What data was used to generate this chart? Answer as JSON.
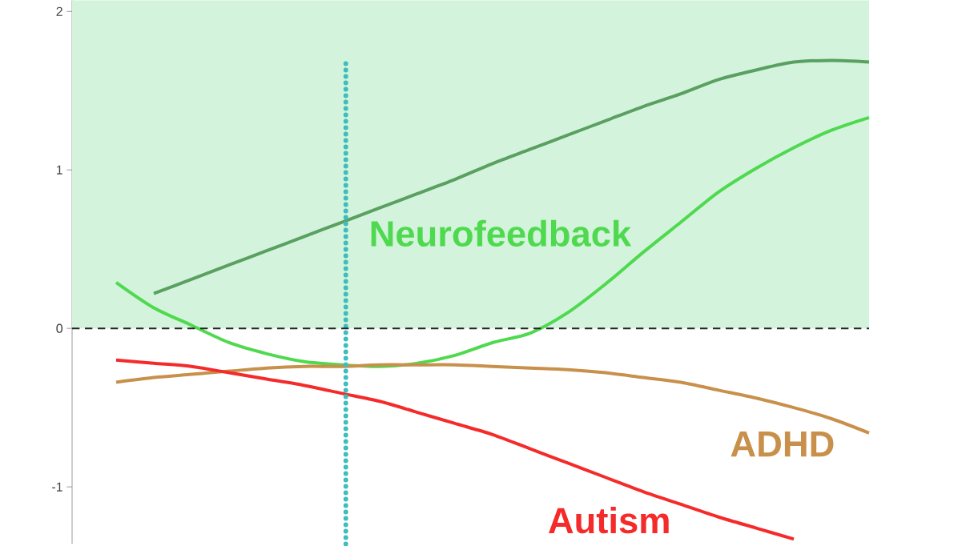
{
  "chart_data": {
    "type": "line",
    "categories": [
      null,
      null,
      null,
      null,
      null,
      null,
      null,
      null,
      null,
      null,
      null,
      null,
      null,
      null,
      null,
      null,
      null,
      null,
      null,
      null,
      null
    ],
    "series": [
      {
        "color": "#5aa060",
        "values": [
          null,
          0.22,
          0.31,
          0.4,
          0.49,
          0.58,
          0.67,
          0.76,
          0.85,
          0.94,
          1.04,
          1.13,
          1.22,
          1.31,
          1.4,
          1.48,
          1.57,
          1.63,
          1.68,
          1.69,
          1.68
        ]
      },
      {
        "name": "Neurofeedback",
        "color": "#4fd94f",
        "values": [
          0.29,
          0.13,
          0.02,
          -0.09,
          -0.16,
          -0.21,
          -0.23,
          -0.24,
          -0.22,
          -0.17,
          -0.09,
          -0.03,
          0.1,
          0.28,
          0.48,
          0.67,
          0.86,
          1.01,
          1.14,
          1.25,
          1.33
        ]
      },
      {
        "name": "ADHD",
        "color": "#c8904a",
        "values": [
          -0.34,
          -0.31,
          -0.29,
          -0.27,
          -0.25,
          -0.24,
          -0.24,
          -0.23,
          -0.23,
          -0.23,
          -0.24,
          -0.25,
          -0.26,
          -0.28,
          -0.31,
          -0.34,
          -0.39,
          -0.44,
          -0.5,
          -0.57,
          -0.66
        ]
      },
      {
        "name": "Autism",
        "color": "#f52a2a",
        "values": [
          -0.2,
          -0.22,
          -0.24,
          -0.28,
          -0.32,
          -0.36,
          -0.41,
          -0.46,
          -0.53,
          -0.6,
          -0.67,
          -0.76,
          -0.85,
          -0.94,
          -1.03,
          -1.11,
          -1.19,
          -1.26,
          -1.33,
          null,
          null
        ]
      }
    ],
    "ylim": [
      -1.36,
      2.07
    ],
    "yticks": [
      -1,
      0,
      1,
      2
    ],
    "bands": [
      {
        "axis": "y",
        "from": 0,
        "to": 2.07,
        "color": "#d3f3dc"
      }
    ],
    "ref_lines": [
      {
        "axis": "y",
        "value": 0,
        "color": "#222222",
        "line_style": "dashed"
      }
    ]
  }
}
